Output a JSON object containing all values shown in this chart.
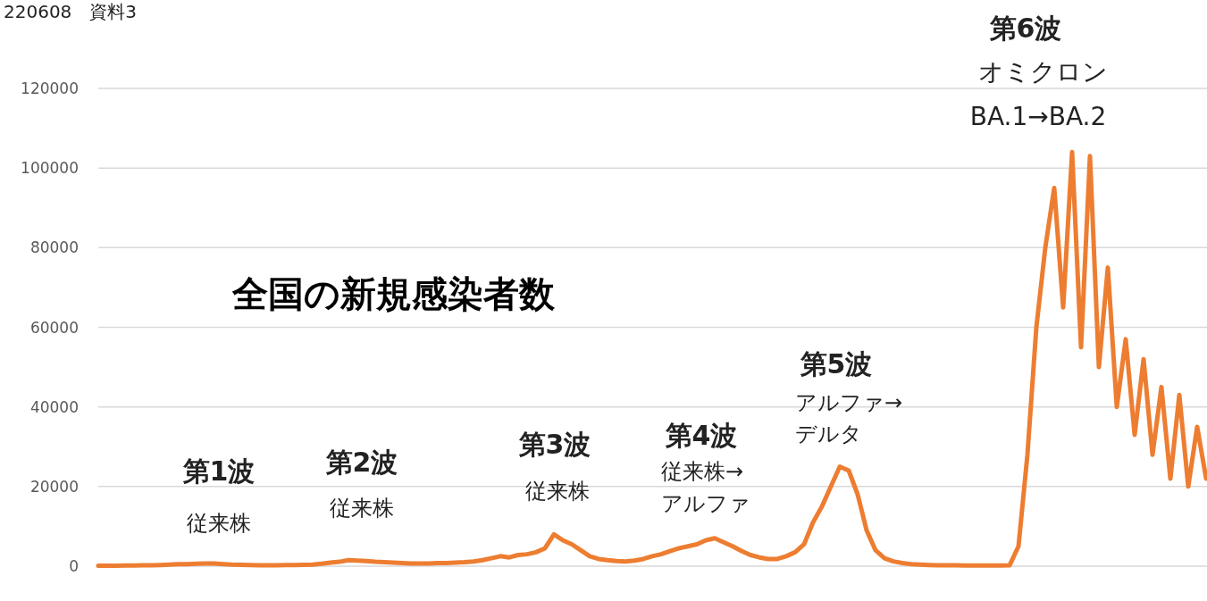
{
  "chart_data": {
    "type": "line",
    "title": "全国の新規感染者数",
    "annotations": [
      "220608　資料3",
      "第1波",
      "従来株",
      "第2波",
      "従来株",
      "第3波",
      "従来株",
      "第4波",
      "従来株→",
      "アルファ",
      "第5波",
      "アルファ→",
      "デルタ",
      "第6波",
      "オミクロン",
      "BA.1→BA.2"
    ],
    "categories": [
      null,
      null,
      null,
      null,
      null,
      null,
      null,
      null,
      null,
      null,
      null,
      null,
      null,
      null,
      null,
      null,
      null,
      null,
      null,
      null,
      null,
      null,
      null,
      null,
      null,
      null,
      null,
      null,
      null,
      null,
      null,
      null,
      null,
      null,
      null,
      null,
      null,
      null,
      null,
      null,
      null,
      null,
      null,
      null,
      null,
      null,
      null,
      null,
      null,
      null,
      null,
      null,
      null,
      null,
      null,
      null,
      null,
      null,
      null,
      null,
      null,
      null,
      null,
      null,
      null,
      null,
      null,
      null,
      null,
      null,
      null,
      null,
      null,
      null,
      null,
      null,
      null,
      null,
      null,
      null,
      null,
      null,
      null,
      null,
      null,
      null,
      null,
      null,
      null,
      null,
      null,
      null,
      null,
      null,
      null,
      null,
      null,
      null,
      null,
      null,
      null,
      null,
      null,
      null,
      null,
      null,
      null,
      null,
      null,
      null,
      null,
      null,
      null,
      null,
      null,
      null,
      null,
      null,
      null,
      null,
      null,
      null,
      null,
      null,
      null
    ],
    "series": [
      {
        "color": "#ed7d31",
        "values": [
          100,
          100,
          100,
          150,
          150,
          200,
          250,
          300,
          400,
          500,
          500,
          600,
          700,
          650,
          500,
          400,
          350,
          300,
          250,
          250,
          250,
          300,
          300,
          350,
          400,
          600,
          900,
          1100,
          1500,
          1400,
          1300,
          1100,
          1000,
          900,
          800,
          700,
          700,
          700,
          800,
          800,
          900,
          1000,
          1200,
          1500,
          2000,
          2500,
          2200,
          2800,
          3000,
          3500,
          4500,
          8000,
          6500,
          5500,
          4000,
          2500,
          1800,
          1500,
          1300,
          1200,
          1400,
          1800,
          2500,
          3000,
          3800,
          4500,
          5000,
          5500,
          6500,
          7000,
          6000,
          5000,
          3800,
          2800,
          2200,
          1800,
          1800,
          2500,
          3500,
          5500,
          11000,
          15000,
          20000,
          25000,
          24000,
          18000,
          9000,
          4000,
          2000,
          1200,
          800,
          500,
          400,
          300,
          250,
          200,
          200,
          150,
          150,
          150,
          150,
          150,
          200,
          5000,
          28000,
          60000,
          80000,
          95000,
          65000,
          104000,
          55000,
          103000,
          50000,
          75000,
          40000,
          57000,
          33000,
          52000,
          28000,
          45000,
          22000,
          43000,
          20000,
          35000,
          22000
        ]
      }
    ],
    "ylim": [
      0,
      120000
    ],
    "yticks": [
      0,
      20000,
      40000,
      60000,
      80000,
      100000,
      120000
    ],
    "grid": "y",
    "tick_labels": "y"
  }
}
